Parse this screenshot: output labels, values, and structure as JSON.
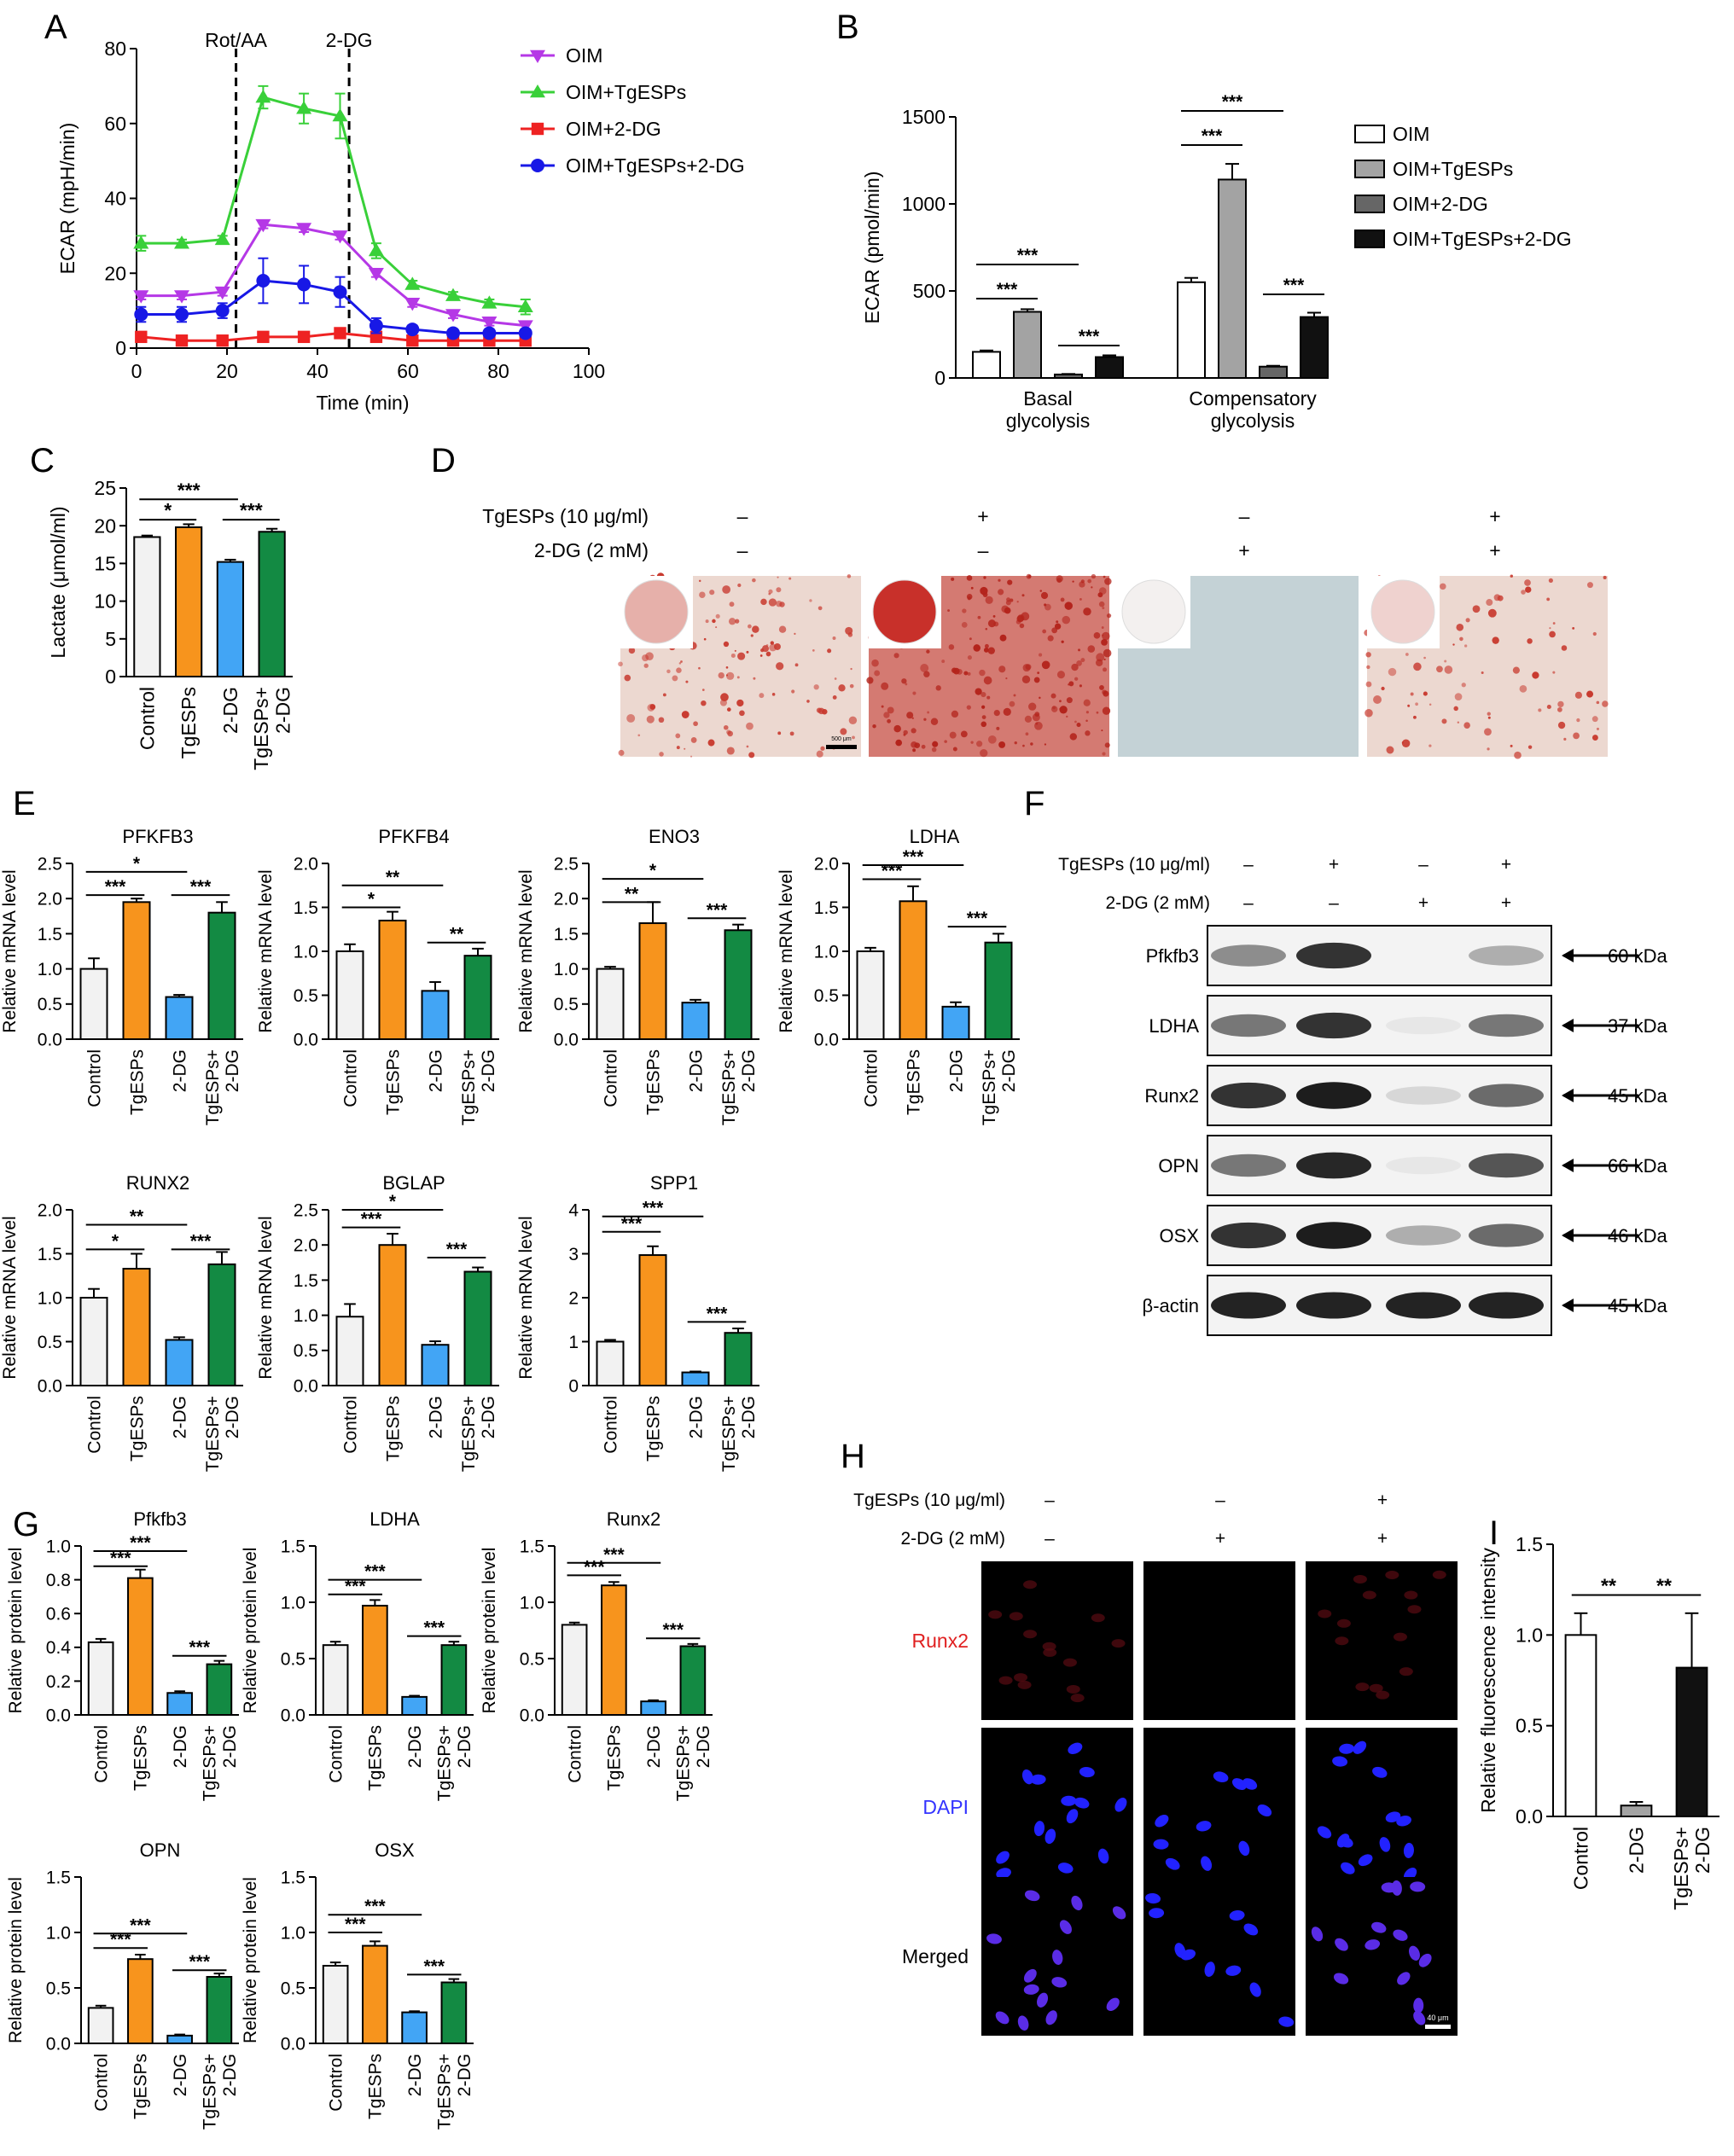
{
  "colors": {
    "ctrl": "#f2f2f2",
    "tg": "#f7941d",
    "dg": "#42a5f5",
    "tgdg": "#138a43",
    "oim": "#b538e6",
    "oimTg": "#39d039",
    "oimDg": "#ee2222",
    "oimTgDg": "#1818e6",
    "ecarWhite": "#ffffff",
    "ecarGrey": "#a3a3a3",
    "ecarDark": "#666666",
    "ecarBlack": "#111111"
  },
  "panel_letters": {
    "A": "A",
    "B": "B",
    "C": "C",
    "D": "D",
    "E": "E",
    "F": "F",
    "G": "G",
    "H": "H",
    "I": "I"
  },
  "groups4": [
    "Control",
    "TgESPs",
    "2-DG",
    "TgESPs+\n2-DG"
  ],
  "groups3": [
    "Control",
    "2-DG",
    "TgESPs+\n2-DG"
  ],
  "chart_data": [
    {
      "id": "A",
      "type": "line",
      "xlabel": "Time (min)",
      "ylabel": "ECAR (mpH/min)",
      "xlim": [
        0,
        100
      ],
      "ylim": [
        0,
        80
      ],
      "xticks": [
        0,
        20,
        40,
        60,
        80,
        100
      ],
      "yticks": [
        0,
        20,
        40,
        60,
        80
      ],
      "x": [
        1,
        10,
        19,
        28,
        37,
        45,
        53,
        61,
        70,
        78,
        86
      ],
      "vlines": [
        {
          "x": 22,
          "label": "Rot/AA"
        },
        {
          "x": 47,
          "label": "2-DG"
        }
      ],
      "legend": "right",
      "series": [
        {
          "name": "OIM",
          "marker": "triangle-down",
          "values": [
            14,
            14,
            15,
            33,
            32,
            30,
            20,
            12,
            9,
            7,
            6
          ],
          "err": [
            1,
            1,
            1,
            1,
            1,
            1,
            1,
            1,
            1,
            1,
            1
          ]
        },
        {
          "name": "OIM+TgESPs",
          "marker": "triangle-up",
          "values": [
            28,
            28,
            29,
            67,
            64,
            62,
            26,
            17,
            14,
            12,
            11
          ],
          "err": [
            2,
            1,
            1,
            3,
            4,
            6,
            2,
            1,
            1,
            1,
            2
          ]
        },
        {
          "name": "OIM+2-DG",
          "marker": "square",
          "values": [
            3,
            2,
            2,
            3,
            3,
            4,
            3,
            2,
            2,
            2,
            2
          ],
          "err": [
            0,
            0,
            0,
            0,
            0,
            0,
            0,
            0,
            0,
            0,
            0
          ]
        },
        {
          "name": "OIM+TgESPs+2-DG",
          "marker": "circle",
          "values": [
            9,
            9,
            10,
            18,
            17,
            15,
            6,
            5,
            4,
            4,
            4
          ],
          "err": [
            2,
            2,
            2,
            6,
            5,
            4,
            2,
            1,
            1,
            1,
            1
          ]
        }
      ]
    },
    {
      "id": "B",
      "type": "bar",
      "ylabel": "ECAR (pmol/min)",
      "ylim": [
        0,
        1500
      ],
      "yticks": [
        0,
        500,
        1000,
        1500
      ],
      "categories": [
        "Basal\nglycolysis",
        "Compensatory\nglycolysis"
      ],
      "legend": "right",
      "series": [
        {
          "name": "OIM",
          "values": [
            150,
            550
          ],
          "err": [
            8,
            25
          ]
        },
        {
          "name": "OIM+TgESPs",
          "values": [
            380,
            1140
          ],
          "err": [
            15,
            90
          ]
        },
        {
          "name": "OIM+2-DG",
          "values": [
            20,
            65
          ],
          "err": [
            3,
            5
          ]
        },
        {
          "name": "OIM+TgESPs+2-DG",
          "values": [
            120,
            350
          ],
          "err": [
            10,
            25
          ]
        }
      ],
      "sig": [
        {
          "cat": 0,
          "a": 0,
          "b": 1,
          "text": "***",
          "level": 1
        },
        {
          "cat": 0,
          "a": 0,
          "b": 2,
          "text": "***",
          "level": 2
        },
        {
          "cat": 0,
          "a": 2,
          "b": 3,
          "text": "***",
          "level": 0
        },
        {
          "cat": 1,
          "a": 0,
          "b": 1,
          "text": "***",
          "level": 1
        },
        {
          "cat": 1,
          "a": 0,
          "b": 2,
          "text": "***",
          "level": 2
        },
        {
          "cat": 1,
          "a": 2,
          "b": 3,
          "text": "***",
          "level": 0
        }
      ]
    },
    {
      "id": "C",
      "type": "bar",
      "ylabel": "Lactate (μmol/ml)",
      "ylim": [
        0,
        25
      ],
      "yticks": [
        0,
        5,
        10,
        15,
        20,
        25
      ],
      "values": [
        18.5,
        19.8,
        15.2,
        19.2
      ],
      "err": [
        0.2,
        0.4,
        0.3,
        0.4
      ],
      "sig": [
        {
          "a": 0,
          "b": 1,
          "text": "*",
          "y": 20.8
        },
        {
          "a": 0,
          "b": 2,
          "text": "***",
          "y": 23.5
        },
        {
          "a": 2,
          "b": 3,
          "text": "***",
          "y": 20.8
        }
      ]
    },
    {
      "id": "E1",
      "type": "bar",
      "title": "PFKFB3",
      "ylabel": "Relative mRNA level",
      "ylim": [
        0,
        2.5
      ],
      "yticks": [
        0,
        0.5,
        1.0,
        1.5,
        2.0,
        2.5
      ],
      "values": [
        1.0,
        1.95,
        0.6,
        1.8
      ],
      "err": [
        0.15,
        0.05,
        0.03,
        0.15
      ],
      "sig": [
        {
          "a": 0,
          "b": 1,
          "text": "***",
          "y": 2.05
        },
        {
          "a": 0,
          "b": 2,
          "text": "*",
          "y": 2.38
        },
        {
          "a": 2,
          "b": 3,
          "text": "***",
          "y": 2.05
        }
      ]
    },
    {
      "id": "E2",
      "type": "bar",
      "title": "PFKFB4",
      "ylabel": "Relative mRNA level",
      "ylim": [
        0,
        2.0
      ],
      "yticks": [
        0,
        0.5,
        1.0,
        1.5,
        2.0
      ],
      "values": [
        1.0,
        1.35,
        0.55,
        0.95
      ],
      "err": [
        0.08,
        0.1,
        0.1,
        0.08
      ],
      "sig": [
        {
          "a": 0,
          "b": 1,
          "text": "*",
          "y": 1.5
        },
        {
          "a": 0,
          "b": 2,
          "text": "**",
          "y": 1.75
        },
        {
          "a": 2,
          "b": 3,
          "text": "**",
          "y": 1.1
        }
      ]
    },
    {
      "id": "E3",
      "type": "bar",
      "title": "ENO3",
      "ylabel": "Relative mRNA level",
      "ylim": [
        0,
        2.5
      ],
      "yticks": [
        0,
        0.5,
        1.0,
        1.5,
        2.0,
        2.5
      ],
      "values": [
        1.0,
        1.65,
        0.52,
        1.55
      ],
      "err": [
        0.03,
        0.3,
        0.04,
        0.08
      ],
      "sig": [
        {
          "a": 0,
          "b": 1,
          "text": "**",
          "y": 1.95
        },
        {
          "a": 0,
          "b": 2,
          "text": "*",
          "y": 2.28
        },
        {
          "a": 2,
          "b": 3,
          "text": "***",
          "y": 1.72
        }
      ]
    },
    {
      "id": "E4",
      "type": "bar",
      "title": "LDHA",
      "ylabel": "Relative mRNA level",
      "ylim": [
        0,
        2.0
      ],
      "yticks": [
        0,
        0.5,
        1.0,
        1.5,
        2.0
      ],
      "values": [
        1.0,
        1.57,
        0.37,
        1.1
      ],
      "err": [
        0.04,
        0.17,
        0.05,
        0.1
      ],
      "sig": [
        {
          "a": 0,
          "b": 1,
          "text": "***",
          "y": 1.82
        },
        {
          "a": 0,
          "b": 2,
          "text": "***",
          "y": 1.98
        },
        {
          "a": 2,
          "b": 3,
          "text": "***",
          "y": 1.28
        }
      ]
    },
    {
      "id": "E5",
      "type": "bar",
      "title": "RUNX2",
      "ylabel": "Relative mRNA level",
      "ylim": [
        0,
        2.0
      ],
      "yticks": [
        0,
        0.5,
        1.0,
        1.5,
        2.0
      ],
      "values": [
        1.0,
        1.33,
        0.52,
        1.38
      ],
      "err": [
        0.1,
        0.17,
        0.03,
        0.14
      ],
      "sig": [
        {
          "a": 0,
          "b": 1,
          "text": "*",
          "y": 1.55
        },
        {
          "a": 0,
          "b": 2,
          "text": "**",
          "y": 1.83
        },
        {
          "a": 2,
          "b": 3,
          "text": "***",
          "y": 1.55
        }
      ]
    },
    {
      "id": "E6",
      "type": "bar",
      "title": "BGLAP",
      "ylabel": "Relative mRNA level",
      "ylim": [
        0,
        2.5
      ],
      "yticks": [
        0,
        0.5,
        1.0,
        1.5,
        2.0,
        2.5
      ],
      "values": [
        0.98,
        2.0,
        0.58,
        1.62
      ],
      "err": [
        0.18,
        0.16,
        0.05,
        0.06
      ],
      "sig": [
        {
          "a": 0,
          "b": 1,
          "text": "***",
          "y": 2.25
        },
        {
          "a": 0,
          "b": 2,
          "text": "*",
          "y": 2.5
        },
        {
          "a": 2,
          "b": 3,
          "text": "***",
          "y": 1.82
        }
      ]
    },
    {
      "id": "E7",
      "type": "bar",
      "title": "SPP1",
      "ylabel": "Relative mRNA level",
      "ylim": [
        0,
        4
      ],
      "yticks": [
        0,
        1,
        2,
        3,
        4
      ],
      "values": [
        1.0,
        2.97,
        0.3,
        1.2
      ],
      "err": [
        0.04,
        0.2,
        0.02,
        0.1
      ],
      "sig": [
        {
          "a": 0,
          "b": 1,
          "text": "***",
          "y": 3.5
        },
        {
          "a": 0,
          "b": 2,
          "text": "***",
          "y": 3.85
        },
        {
          "a": 2,
          "b": 3,
          "text": "***",
          "y": 1.45
        }
      ]
    },
    {
      "id": "G1",
      "type": "bar",
      "title": "Pfkfb3",
      "ylabel": "Relative protein level",
      "ylim": [
        0,
        1.0
      ],
      "yticks": [
        0,
        0.2,
        0.4,
        0.6,
        0.8,
        1.0
      ],
      "values": [
        0.43,
        0.81,
        0.13,
        0.3
      ],
      "err": [
        0.02,
        0.05,
        0.01,
        0.02
      ],
      "sig": [
        {
          "a": 0,
          "b": 1,
          "text": "***",
          "y": 0.88
        },
        {
          "a": 0,
          "b": 2,
          "text": "***",
          "y": 0.97
        },
        {
          "a": 2,
          "b": 3,
          "text": "***",
          "y": 0.35
        }
      ]
    },
    {
      "id": "G2",
      "type": "bar",
      "title": "LDHA",
      "ylabel": "Relative protein level",
      "ylim": [
        0,
        1.5
      ],
      "yticks": [
        0,
        0.5,
        1.0,
        1.5
      ],
      "values": [
        0.62,
        0.97,
        0.16,
        0.62
      ],
      "err": [
        0.03,
        0.05,
        0.01,
        0.03
      ],
      "sig": [
        {
          "a": 0,
          "b": 1,
          "text": "***",
          "y": 1.07
        },
        {
          "a": 0,
          "b": 2,
          "text": "***",
          "y": 1.2
        },
        {
          "a": 2,
          "b": 3,
          "text": "***",
          "y": 0.7
        }
      ]
    },
    {
      "id": "G3",
      "type": "bar",
      "title": "Runx2",
      "ylabel": "Relative protein level",
      "ylim": [
        0,
        1.5
      ],
      "yticks": [
        0,
        0.5,
        1.0,
        1.5
      ],
      "values": [
        0.8,
        1.15,
        0.12,
        0.61
      ],
      "err": [
        0.02,
        0.03,
        0.01,
        0.02
      ],
      "sig": [
        {
          "a": 0,
          "b": 1,
          "text": "***",
          "y": 1.24
        },
        {
          "a": 0,
          "b": 2,
          "text": "***",
          "y": 1.35
        },
        {
          "a": 2,
          "b": 3,
          "text": "***",
          "y": 0.68
        }
      ]
    },
    {
      "id": "G4",
      "type": "bar",
      "title": "OPN",
      "ylabel": "Relative protein level",
      "ylim": [
        0,
        1.5
      ],
      "yticks": [
        0,
        0.5,
        1.0,
        1.5
      ],
      "values": [
        0.32,
        0.76,
        0.07,
        0.6
      ],
      "err": [
        0.02,
        0.04,
        0.01,
        0.03
      ],
      "sig": [
        {
          "a": 0,
          "b": 1,
          "text": "***",
          "y": 0.86
        },
        {
          "a": 0,
          "b": 2,
          "text": "***",
          "y": 0.99
        },
        {
          "a": 2,
          "b": 3,
          "text": "***",
          "y": 0.66
        }
      ]
    },
    {
      "id": "G5",
      "type": "bar",
      "title": "OSX",
      "ylabel": "Relative protein level",
      "ylim": [
        0,
        1.5
      ],
      "yticks": [
        0,
        0.5,
        1.0,
        1.5
      ],
      "values": [
        0.7,
        0.88,
        0.28,
        0.55
      ],
      "err": [
        0.03,
        0.04,
        0.01,
        0.03
      ],
      "sig": [
        {
          "a": 0,
          "b": 1,
          "text": "***",
          "y": 1.0
        },
        {
          "a": 0,
          "b": 2,
          "text": "***",
          "y": 1.16
        },
        {
          "a": 2,
          "b": 3,
          "text": "***",
          "y": 0.62
        }
      ]
    },
    {
      "id": "I",
      "type": "bar",
      "ylabel": "Relative fluorescence intensity",
      "ylim": [
        0,
        1.5
      ],
      "yticks": [
        0,
        0.5,
        1.0,
        1.5
      ],
      "values": [
        1.0,
        0.06,
        0.82
      ],
      "err": [
        0.12,
        0.02,
        0.3
      ],
      "sig": [
        {
          "a": 0,
          "b": 1,
          "text": "**",
          "y": 1.22
        },
        {
          "a": 1,
          "b": 2,
          "text": "**",
          "y": 1.22
        }
      ]
    }
  ],
  "panelD": {
    "row1_label": "TgESPs (10 μg/ml)",
    "row2_label": "2-DG (2 mM)",
    "row1": [
      "–",
      "+",
      "–",
      "+"
    ],
    "row2": [
      "–",
      "–",
      "+",
      "+"
    ],
    "scale": "500 μm"
  },
  "panelF": {
    "row1_label": "TgESPs (10 μg/ml)",
    "row2_label": "2-DG (2 mM)",
    "row1": [
      "–",
      "+",
      "–",
      "+"
    ],
    "row2": [
      "–",
      "–",
      "+",
      "+"
    ],
    "blots": [
      {
        "name": "Pfkfb3",
        "kda": "60 kDa",
        "intensity": [
          0.45,
          0.85,
          0.03,
          0.3
        ]
      },
      {
        "name": "LDHA",
        "kda": "37 kDa",
        "intensity": [
          0.55,
          0.85,
          0.05,
          0.55
        ]
      },
      {
        "name": "Runx2",
        "kda": "45 kDa",
        "intensity": [
          0.85,
          0.95,
          0.12,
          0.6
        ]
      },
      {
        "name": "OPN",
        "kda": "66 kDa",
        "intensity": [
          0.55,
          0.9,
          0.05,
          0.7
        ]
      },
      {
        "name": "OSX",
        "kda": "46 kDa",
        "intensity": [
          0.85,
          0.95,
          0.3,
          0.6
        ]
      },
      {
        "name": "β-actin",
        "kda": "45 kDa",
        "intensity": [
          0.92,
          0.92,
          0.92,
          0.92
        ]
      }
    ]
  },
  "panelH": {
    "row1_label": "TgESPs (10 μg/ml)",
    "row2_label": "2-DG (2 mM)",
    "row1": [
      "–",
      "–",
      "+"
    ],
    "row2": [
      "–",
      "+",
      "+"
    ],
    "rows": [
      "Runx2",
      "DAPI",
      "Merged"
    ],
    "scale": "40 μm"
  }
}
